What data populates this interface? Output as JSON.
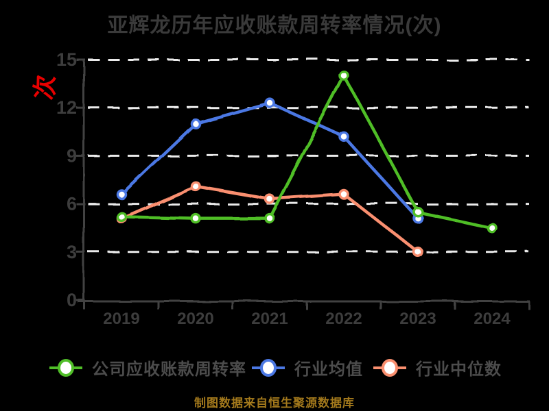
{
  "title": "亚辉龙历年应收账款周转率情况(次)",
  "ylabel_stamp": "次",
  "footer": "制图数据来自恒生聚源数据库",
  "colors": {
    "background": "#000000",
    "company": "#50be28",
    "industry_avg": "#4b78e4",
    "industry_median": "#fa8f6f",
    "grid": "#ebebeb",
    "axis": "#434343",
    "title_text": "#3a3a3a",
    "tick_text": "#3d3d3d",
    "legend_text": "#4c4c4c",
    "footer_text": "#a3791c",
    "stamp": "#e80000",
    "marker_fill": "#ffffff"
  },
  "chart_data": {
    "type": "line",
    "title": "亚辉龙历年应收账款周转率情况(次)",
    "categories": [
      "2019",
      "2020",
      "2021",
      "2022",
      "2023",
      "2024"
    ],
    "series": [
      {
        "name": "公司应收账款周转率",
        "color": "#50be28",
        "values": [
          5.2,
          5.1,
          5.1,
          14.0,
          5.5,
          4.5
        ]
      },
      {
        "name": "行业均值",
        "color": "#4b78e4",
        "values": [
          6.6,
          11.0,
          12.3,
          10.2,
          5.1,
          null
        ]
      },
      {
        "name": "行业中位数",
        "color": "#fa8f6f",
        "values": [
          5.1,
          7.1,
          6.3,
          6.6,
          3.0,
          null
        ]
      }
    ],
    "ylim": [
      0,
      15
    ],
    "yticks": [
      0,
      3,
      6,
      9,
      12,
      15
    ],
    "grid": "horizontal-dashed",
    "legend_position": "bottom",
    "marker": "circle-white-fill",
    "style": "hand-drawn-sketch"
  }
}
